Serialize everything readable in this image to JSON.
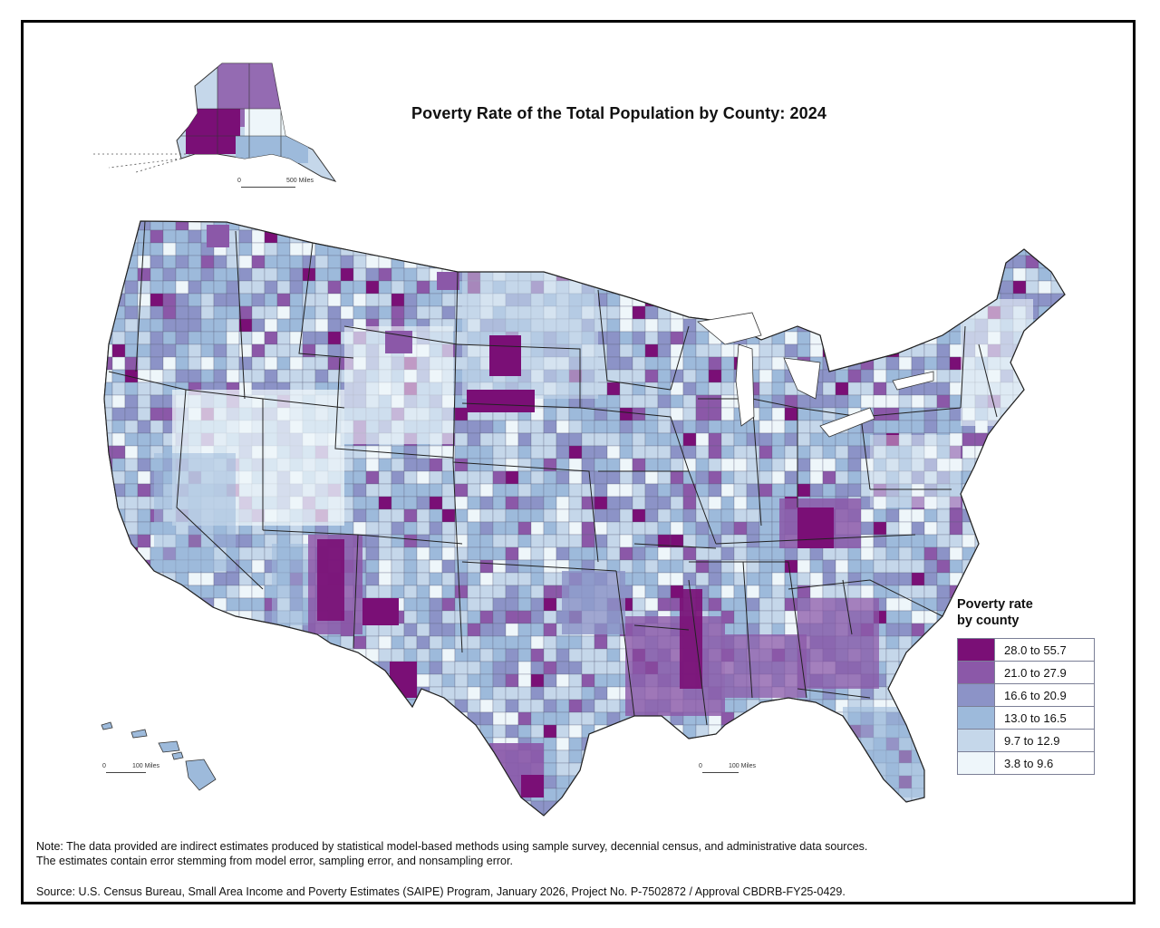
{
  "title": "Poverty Rate of the Total Population by County: 2024",
  "legend": {
    "title_line1": "Poverty rate",
    "title_line2": "by county",
    "classes": [
      {
        "label": "28.0 to 55.7",
        "color": "#7a0f76"
      },
      {
        "label": "21.0 to 27.9",
        "color": "#8b58a8"
      },
      {
        "label": "16.6 to 20.9",
        "color": "#8c93c7"
      },
      {
        "label": "13.0 to 16.5",
        "color": "#9dbadb"
      },
      {
        "label": "9.7 to 12.9",
        "color": "#c5d7ea"
      },
      {
        "label": "3.8 to 9.6",
        "color": "#eef6fa"
      }
    ]
  },
  "scales": {
    "alaska": {
      "zero": "0",
      "distance": "500 Miles"
    },
    "hawaii": {
      "zero": "0",
      "distance": "100 Miles"
    },
    "puerto_rico": {
      "zero": "0",
      "distance": "100 Miles"
    }
  },
  "note_line1": "Note: The data provided are indirect estimates produced by statistical model-based methods using sample survey, decennial census, and administrative data sources.",
  "note_line2": "The estimates contain error stemming from model error, sampling error, and nonsampling error.",
  "source": "Source: U.S. Census Bureau, Small Area Income and Poverty Estimates (SAIPE) Program, January 2026, Project No. P-7502872 / Approval CBDRB-FY25-0429."
}
